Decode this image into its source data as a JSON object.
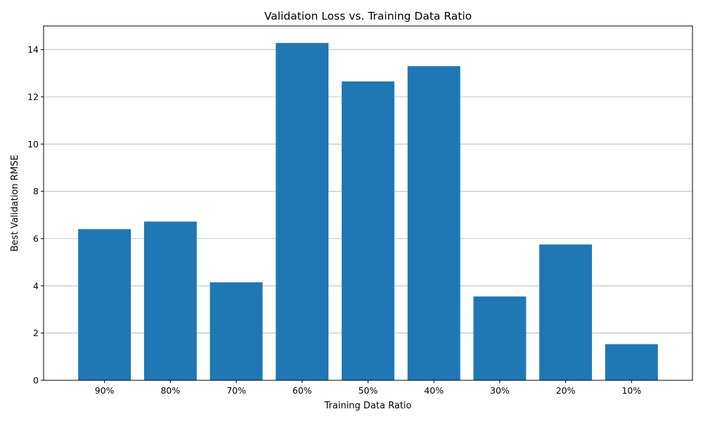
{
  "chart_data": {
    "type": "bar",
    "title": "Validation Loss vs. Training Data Ratio",
    "xlabel": "Training Data Ratio",
    "ylabel": "Best Validation RMSE",
    "categories": [
      "90%",
      "80%",
      "70%",
      "60%",
      "50%",
      "40%",
      "30%",
      "20%",
      "10%"
    ],
    "values": [
      6.4,
      6.72,
      4.15,
      14.28,
      12.65,
      13.3,
      3.55,
      5.75,
      1.53
    ],
    "ylim": [
      0,
      15
    ],
    "yticks": [
      0,
      2,
      4,
      6,
      8,
      10,
      12,
      14
    ],
    "grid": "y-major",
    "legend": "none",
    "bar_color": "#1f77b4",
    "grid_color": "#b0b0b0"
  }
}
